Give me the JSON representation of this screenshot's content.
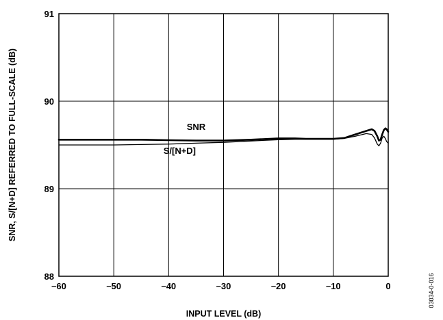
{
  "chart_data": {
    "type": "line",
    "title": "",
    "xlabel": "INPUT LEVEL (dB)",
    "ylabel": "SNR, S/[N+D] REFERRED TO FULL-SCALE (dB)",
    "xlim": [
      -60,
      0
    ],
    "ylim": [
      88,
      91
    ],
    "x_ticks": [
      "–60",
      "–50",
      "–40",
      "–30",
      "–20",
      "–10",
      "0"
    ],
    "y_ticks": [
      "88",
      "89",
      "90",
      "91"
    ],
    "grid": true,
    "legend": "none (series labeled inline)",
    "series": [
      {
        "name": "SNR",
        "stroke_px": 2.6,
        "label_at": [
          -35,
          89.67
        ],
        "points": [
          [
            -60,
            89.56
          ],
          [
            -50,
            89.56
          ],
          [
            -45,
            89.56
          ],
          [
            -40,
            89.555
          ],
          [
            -35,
            89.55
          ],
          [
            -30,
            89.55
          ],
          [
            -25,
            89.56
          ],
          [
            -20,
            89.575
          ],
          [
            -17,
            89.575
          ],
          [
            -15,
            89.57
          ],
          [
            -12,
            89.57
          ],
          [
            -10,
            89.57
          ],
          [
            -8,
            89.58
          ],
          [
            -6,
            89.62
          ],
          [
            -4,
            89.66
          ],
          [
            -3,
            89.68
          ],
          [
            -2.5,
            89.66
          ],
          [
            -2,
            89.6
          ],
          [
            -1.7,
            89.55
          ],
          [
            -1.4,
            89.56
          ],
          [
            -1.1,
            89.62
          ],
          [
            -0.8,
            89.67
          ],
          [
            -0.5,
            89.69
          ],
          [
            -0.3,
            89.68
          ],
          [
            0,
            89.65
          ]
        ]
      },
      {
        "name": "S/[N+D]",
        "stroke_px": 1.3,
        "label_at": [
          -38,
          89.4
        ],
        "points": [
          [
            -60,
            89.5
          ],
          [
            -50,
            89.5
          ],
          [
            -45,
            89.505
          ],
          [
            -40,
            89.51
          ],
          [
            -35,
            89.52
          ],
          [
            -30,
            89.53
          ],
          [
            -25,
            89.545
          ],
          [
            -20,
            89.56
          ],
          [
            -17,
            89.565
          ],
          [
            -15,
            89.565
          ],
          [
            -12,
            89.565
          ],
          [
            -10,
            89.565
          ],
          [
            -8,
            89.575
          ],
          [
            -6,
            89.6
          ],
          [
            -4,
            89.63
          ],
          [
            -3,
            89.62
          ],
          [
            -2.5,
            89.58
          ],
          [
            -2,
            89.51
          ],
          [
            -1.7,
            89.49
          ],
          [
            -1.4,
            89.52
          ],
          [
            -1.1,
            89.58
          ],
          [
            -0.8,
            89.6
          ],
          [
            -0.5,
            89.57
          ],
          [
            -0.3,
            89.54
          ],
          [
            0,
            89.52
          ]
        ]
      }
    ]
  },
  "figure_id": "03034-0-016"
}
